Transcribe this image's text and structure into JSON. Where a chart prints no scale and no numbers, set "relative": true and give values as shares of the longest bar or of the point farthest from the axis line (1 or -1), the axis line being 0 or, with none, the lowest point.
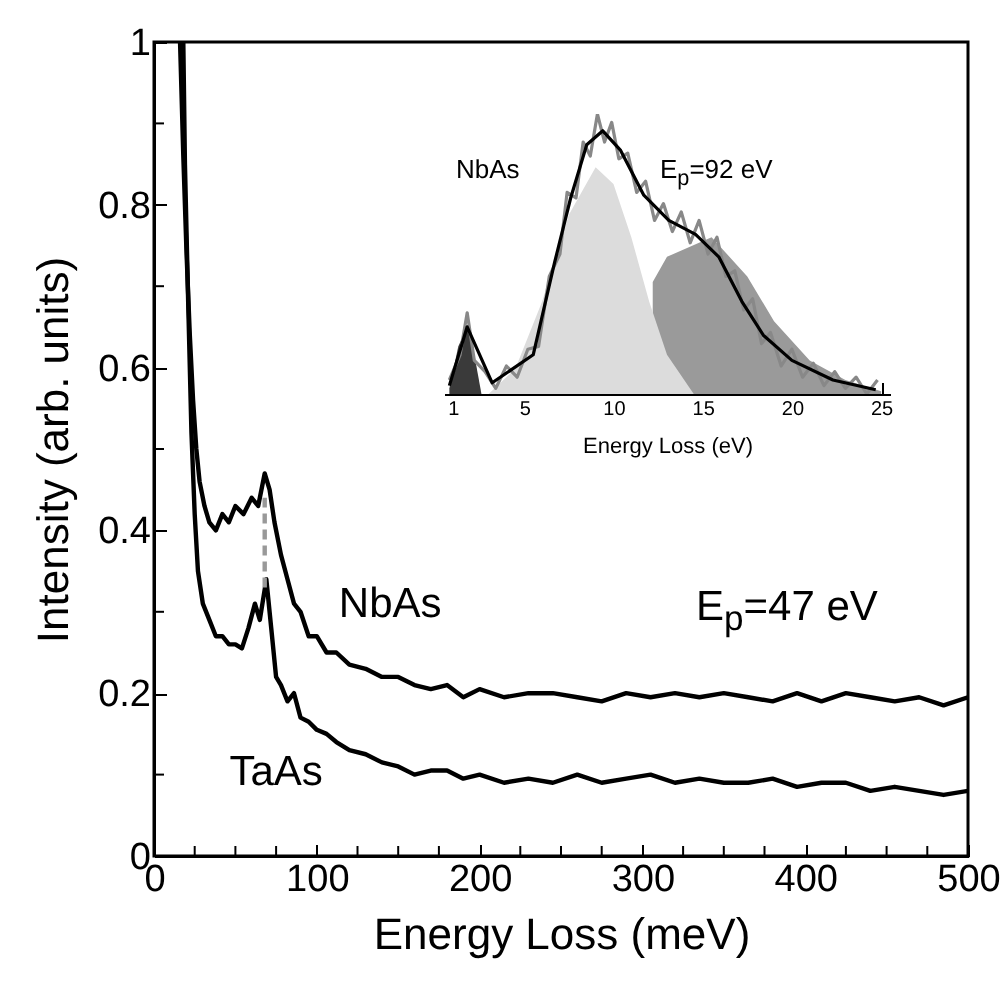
{
  "chart_data": [
    {
      "type": "line",
      "xlabel": "Energy Loss (meV)",
      "ylabel": "Intensity (arb. units)",
      "annotations": [
        "E$_{p}$=47 eV"
      ],
      "xlim": [
        0,
        500
      ],
      "ylim": [
        0,
        1
      ],
      "xticks": [
        0,
        {
          "value": 25,
          "label": null
        },
        100,
        {
          "value": 50,
          "label": null
        },
        {
          "value": 75,
          "label": null
        },
        {
          "value": 125,
          "label": null
        },
        {
          "value": 150,
          "label": null
        },
        {
          "value": 175,
          "label": null
        },
        200,
        {
          "value": 225,
          "label": null
        },
        {
          "value": 250,
          "label": null
        },
        {
          "value": 275,
          "label": null
        },
        300,
        {
          "value": 325,
          "label": null
        },
        {
          "value": 350,
          "label": null
        },
        {
          "value": 375,
          "label": null
        },
        400,
        {
          "value": 425,
          "label": null
        },
        {
          "value": 450,
          "label": null
        },
        {
          "value": 475,
          "label": null
        },
        500
      ],
      "yticks": [
        0,
        {
          "value": 0.1,
          "label": null
        },
        0.2,
        {
          "value": 0.3,
          "label": null
        },
        0.4,
        {
          "value": 0.5,
          "label": null
        },
        0.6,
        {
          "value": 0.7,
          "label": null
        },
        0.8,
        {
          "value": 0.9,
          "label": null
        },
        1
      ],
      "series": [
        {
          "name": "NbAs",
          "color": "#000000",
          "x": [
            16,
            18,
            20,
            22,
            24,
            26,
            28,
            31,
            34,
            38,
            42,
            46,
            50,
            55,
            60,
            64,
            68,
            71,
            74,
            78,
            82,
            86,
            90,
            95,
            100,
            106,
            112,
            120,
            130,
            140,
            150,
            160,
            170,
            180,
            190,
            200,
            215,
            230,
            245,
            260,
            275,
            290,
            305,
            320,
            335,
            350,
            365,
            380,
            395,
            410,
            425,
            440,
            455,
            470,
            485,
            500
          ],
          "values": [
            1.0,
            0.86,
            0.74,
            0.64,
            0.56,
            0.5,
            0.46,
            0.43,
            0.41,
            0.4,
            0.42,
            0.41,
            0.43,
            0.42,
            0.44,
            0.43,
            0.47,
            0.45,
            0.41,
            0.37,
            0.34,
            0.31,
            0.3,
            0.27,
            0.27,
            0.25,
            0.25,
            0.235,
            0.23,
            0.22,
            0.22,
            0.21,
            0.205,
            0.21,
            0.195,
            0.205,
            0.195,
            0.2,
            0.2,
            0.195,
            0.19,
            0.2,
            0.195,
            0.2,
            0.195,
            0.2,
            0.195,
            0.19,
            0.2,
            0.19,
            0.2,
            0.195,
            0.19,
            0.195,
            0.185,
            0.195
          ]
        },
        {
          "name": "TaAs",
          "color": "#000000",
          "x": [
            18,
            19,
            21,
            23,
            25,
            27,
            30,
            34,
            38,
            42,
            46,
            50,
            54,
            58,
            62,
            65,
            69,
            72,
            75,
            78,
            82,
            86,
            90,
            95,
            100,
            106,
            112,
            120,
            130,
            140,
            150,
            160,
            170,
            180,
            190,
            200,
            215,
            230,
            245,
            260,
            275,
            290,
            305,
            320,
            335,
            350,
            365,
            380,
            395,
            410,
            425,
            440,
            455,
            470,
            485,
            500
          ],
          "values": [
            1.0,
            0.85,
            0.68,
            0.52,
            0.42,
            0.35,
            0.31,
            0.29,
            0.27,
            0.27,
            0.26,
            0.26,
            0.255,
            0.28,
            0.31,
            0.29,
            0.34,
            0.28,
            0.22,
            0.21,
            0.19,
            0.2,
            0.17,
            0.165,
            0.155,
            0.15,
            0.14,
            0.13,
            0.125,
            0.115,
            0.11,
            0.1,
            0.105,
            0.105,
            0.095,
            0.1,
            0.09,
            0.095,
            0.09,
            0.1,
            0.09,
            0.095,
            0.1,
            0.09,
            0.095,
            0.09,
            0.09,
            0.095,
            0.085,
            0.09,
            0.09,
            0.08,
            0.085,
            0.08,
            0.075,
            0.08
          ]
        },
        {
          "color": "#999999",
          "line_style": "dashed",
          "x": [
            68,
            68
          ],
          "values": [
            0.33,
            0.44
          ]
        }
      ]
    },
    {
      "type": "line",
      "relative": true,
      "xlabel": "Energy Loss (eV)",
      "annotations": [
        "NbAs",
        "E$_{p}$=92 eV"
      ],
      "xlim": [
        0.5,
        25.5
      ],
      "xticks": [
        1,
        5,
        10,
        15,
        20,
        25
      ],
      "series": [
        {
          "type": "area",
          "color": "#9a9a9a",
          "x": [
            12.2,
            13,
            15.5,
            17.5,
            19,
            21,
            23,
            25
          ],
          "values": [
            0.4,
            0.49,
            0.56,
            0.42,
            0.26,
            0.12,
            0.05,
            0.01
          ]
        },
        {
          "type": "area",
          "color": "#dcdcdc",
          "x": [
            3,
            4.5,
            6,
            7.5,
            9,
            10,
            11,
            12,
            13,
            14.5
          ],
          "values": [
            0,
            0.09,
            0.33,
            0.64,
            0.81,
            0.75,
            0.56,
            0.33,
            0.14,
            0
          ]
        },
        {
          "type": "area",
          "color": "#3a3a3a",
          "x": [
            0.8,
            1.3,
            1.8,
            2.2,
            2.6
          ],
          "values": [
            0.02,
            0.17,
            0.24,
            0.14,
            0
          ]
        },
        {
          "color": "#888888",
          "x": [
            0.8,
            1.4,
            1.8,
            2.2,
            2.8,
            3.4,
            4.0,
            4.6,
            5.2,
            5.8,
            6.4,
            7.0,
            7.4,
            7.9,
            8.3,
            8.7,
            9.1,
            9.5,
            9.9,
            10.3,
            10.8,
            11.3,
            11.8,
            12.3,
            12.8,
            13.3,
            13.8,
            14.3,
            14.8,
            15.3,
            15.8,
            16.3,
            16.8,
            17.3,
            17.8,
            18.3,
            18.8,
            19.4,
            20.0,
            20.6,
            21.2,
            21.8,
            22.4,
            23.0,
            23.6,
            24.2,
            24.8
          ],
          "values": [
            0.05,
            0.14,
            0.29,
            0.12,
            0.08,
            0.02,
            0.1,
            0.06,
            0.16,
            0.17,
            0.42,
            0.5,
            0.72,
            0.7,
            0.9,
            0.85,
            1.0,
            0.9,
            0.97,
            0.84,
            0.86,
            0.72,
            0.76,
            0.62,
            0.68,
            0.58,
            0.65,
            0.54,
            0.62,
            0.5,
            0.56,
            0.42,
            0.44,
            0.3,
            0.34,
            0.18,
            0.22,
            0.1,
            0.16,
            0.06,
            0.11,
            0.03,
            0.08,
            0.02,
            0.06,
            0.0,
            0.05
          ]
        },
        {
          "color": "#000000",
          "x": [
            0.8,
            1.8,
            3.2,
            5.5,
            6.7,
            7.6,
            8.5,
            9.4,
            10.4,
            11.7,
            13.1,
            14.6,
            15.9,
            17.2,
            18.4,
            20,
            22.3,
            24.7
          ],
          "values": [
            0.03,
            0.24,
            0.04,
            0.14,
            0.47,
            0.7,
            0.89,
            0.94,
            0.87,
            0.71,
            0.62,
            0.57,
            0.49,
            0.33,
            0.21,
            0.12,
            0.05,
            0.015
          ]
        }
      ]
    }
  ]
}
